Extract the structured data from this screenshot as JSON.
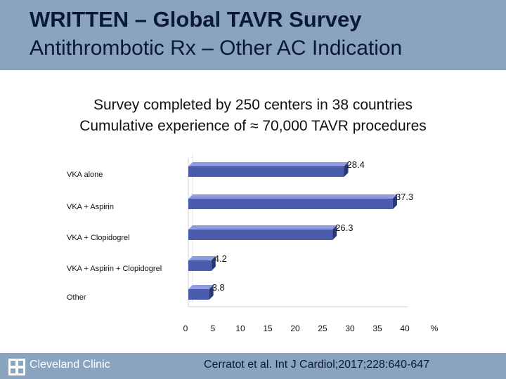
{
  "header": {
    "title": "WRITTEN – Global TAVR Survey",
    "subtitle": "Antithrombotic Rx – Other AC Indication"
  },
  "intro": {
    "line1": "Survey completed by 250 centers in 38 countries",
    "line2": "Cumulative experience of ≈ 70,000 TAVR procedures"
  },
  "chart_data": {
    "type": "bar",
    "orientation": "horizontal",
    "style": "3d",
    "categories": [
      "VKA alone",
      "VKA + Aspirin",
      "VKA + Clopidogrel",
      "VKA + Aspirin + Clopidogrel",
      "Other"
    ],
    "values": [
      28.4,
      37.3,
      26.3,
      4.2,
      3.8
    ],
    "value_labels": [
      "28.4",
      "37.3",
      "26.3",
      "4.2",
      "3.8"
    ],
    "xticks": [
      "0",
      "5",
      "10",
      "15",
      "20",
      "25",
      "30",
      "35",
      "40"
    ],
    "xlim": [
      0,
      40
    ],
    "xunit": "%",
    "title": "",
    "xlabel": "",
    "ylabel": "",
    "grid": false,
    "legend": "none",
    "colors": {
      "bar": "#4a5bab",
      "bar_top": "#8d9be0",
      "bar_side": "#2b3773"
    }
  },
  "footer": {
    "logo_text": "Cleveland Clinic",
    "logo_icon": "cleveland-clinic-logo-icon",
    "citation": "Cerratot et al. Int J Cardiol;2017;228:640-647",
    "background": "#8aa3bf"
  }
}
